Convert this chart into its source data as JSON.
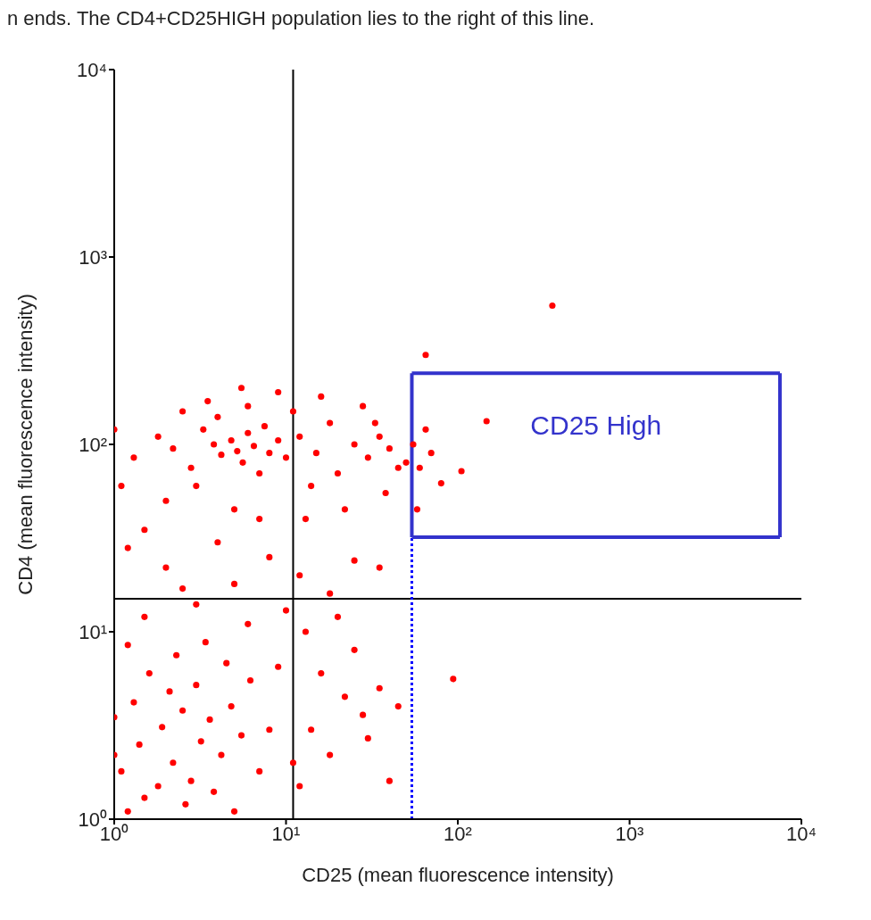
{
  "chart_data": {
    "type": "scatter",
    "annotations": [
      "n ends.  The CD4+CD25HIGH population lies to the right of this line.",
      "CD25 High"
    ],
    "xlabel": "CD25 (mean fluorescence intensity)",
    "ylabel": "CD4 (mean fluorescence intensity)",
    "log": "xy",
    "marker": "circle",
    "xlim": [
      1,
      10000
    ],
    "ylim": [
      1,
      10000
    ],
    "xticks": [
      {
        "value": 1,
        "label": "10⁰"
      },
      {
        "value": 10,
        "label": "10¹"
      },
      {
        "value": 100,
        "label": "10²"
      },
      {
        "value": 1000,
        "label": "10³"
      },
      {
        "value": 10000,
        "label": "10⁴"
      }
    ],
    "yticks": [
      {
        "value": 1,
        "label": "10⁰"
      },
      {
        "value": 10,
        "label": "10¹"
      },
      {
        "value": 100,
        "label": "10²"
      },
      {
        "value": 1000,
        "label": "10³"
      },
      {
        "value": 10000,
        "label": "10⁴"
      }
    ],
    "ref_lines": [
      {
        "axis": "x",
        "value": 11,
        "color": "#000000",
        "line_style": "solid"
      },
      {
        "axis": "y",
        "value": 15,
        "color": "#000000",
        "line_style": "solid"
      },
      {
        "axis": "x",
        "value": 54,
        "color": "#0000ff",
        "line_style": "dotted"
      },
      {
        "axis": "x",
        "value": 54,
        "color": "#3333cc",
        "line_style": "solid"
      },
      {
        "axis": "x",
        "value": 7500,
        "color": "#3333cc",
        "line_style": "solid"
      }
    ],
    "series": [
      {
        "type": "line",
        "marker": "none",
        "line_style": "solid",
        "color": "#3333cc",
        "x": [
          54,
          7500
        ],
        "values": [
          32,
          32
        ]
      },
      {
        "type": "line",
        "marker": "none",
        "line_style": "solid",
        "color": "#3333cc",
        "x": [
          54,
          7500
        ],
        "values": [
          240,
          240
        ]
      },
      {
        "color": "#ff0000",
        "x": [
          1.2,
          1.5,
          1.1,
          1.8,
          2.2,
          1.4,
          2.8,
          3.2,
          1.9,
          2.5,
          3.6,
          1.3,
          4.2,
          2.1,
          3.0,
          4.8,
          1.6,
          5.5,
          2.6,
          3.8,
          1.0,
          1.0,
          6.2,
          7.0,
          4.5,
          2.3,
          1.2,
          5.0,
          8.0,
          3.4,
          12,
          14,
          16,
          18,
          22,
          25,
          30,
          35,
          40,
          13,
          20,
          28,
          11,
          9,
          45,
          1.5,
          3,
          5,
          2,
          8,
          1.2,
          4,
          12,
          18,
          25,
          6,
          35,
          10,
          2.5,
          1.3,
          1.8,
          2.2,
          2.8,
          3.3,
          3.8,
          4.2,
          4.8,
          5.2,
          5.6,
          6,
          6.5,
          7,
          7.5,
          8,
          9,
          10,
          3,
          2,
          5,
          7,
          1.5,
          4,
          6,
          2.5,
          9,
          5.5,
          1,
          1.1,
          3.5,
          12,
          15,
          18,
          20,
          25,
          30,
          35,
          40,
          45,
          14,
          22,
          28,
          16,
          38,
          50,
          13,
          33,
          11,
          55,
          60,
          65,
          70,
          80,
          65,
          147,
          105,
          355,
          94,
          58
        ],
        "values": [
          1.1,
          1.3,
          1.8,
          1.5,
          2.0,
          2.5,
          1.6,
          2.6,
          3.1,
          3.8,
          3.4,
          4.2,
          2.2,
          4.8,
          5.2,
          4.0,
          6.0,
          2.8,
          1.2,
          1.4,
          2.2,
          3.5,
          5.5,
          1.8,
          6.8,
          7.5,
          8.5,
          1.1,
          3.0,
          8.8,
          1.5,
          3,
          6,
          2.2,
          4.5,
          8,
          2.7,
          5,
          1.6,
          10,
          12,
          3.6,
          2.0,
          6.5,
          4,
          12,
          14,
          18,
          22,
          25,
          28,
          30,
          20,
          16,
          24,
          11,
          22,
          13,
          17,
          85,
          110,
          95,
          75,
          120,
          100,
          88,
          105,
          92,
          80,
          115,
          98,
          70,
          125,
          90,
          105,
          85,
          60,
          50,
          45,
          40,
          35,
          140,
          160,
          150,
          190,
          200,
          120,
          60,
          170,
          110,
          90,
          130,
          70,
          100,
          85,
          110,
          95,
          75,
          60,
          45,
          160,
          180,
          55,
          80,
          40,
          130,
          150,
          100,
          75,
          120,
          90,
          62,
          300,
          133,
          72,
          550,
          5.6,
          45
        ]
      }
    ]
  }
}
